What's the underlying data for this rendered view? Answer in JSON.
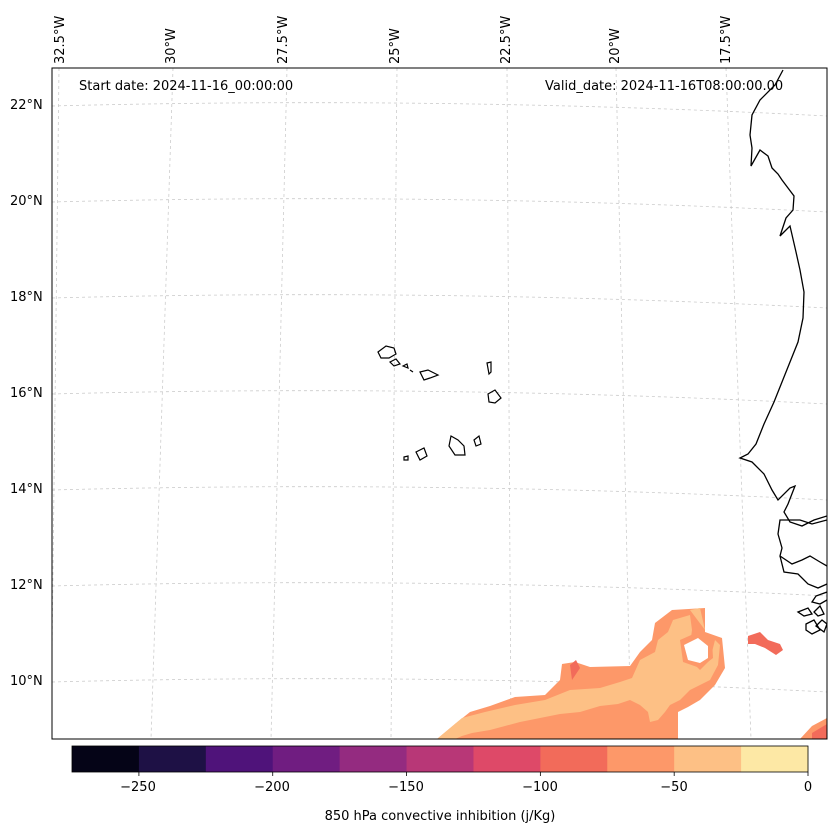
{
  "map": {
    "start_date": "Start date: 2024-11-16_00:00:00",
    "valid_date": "Valid_date: 2024-11-16T08:00:00.00",
    "longitude_labels": [
      "32.5°W",
      "30°W",
      "27.5°W",
      "25°W",
      "22.5°W",
      "20°W",
      "17.5°W"
    ],
    "latitude_labels": [
      "22°N",
      "20°N",
      "18°N",
      "16°N",
      "14°N",
      "12°N",
      "10°N"
    ],
    "region": "Cape Verde islands and West African coast",
    "field_colors": {
      "light": "#fdc085",
      "mid": "#fd9869",
      "dark": "#f26b5a"
    }
  },
  "colorbar": {
    "title": "850 hPa convective inhibition (j/Kg)",
    "tick_labels": [
      "−250",
      "−200",
      "−150",
      "−100",
      "−50",
      "0"
    ],
    "bins": [
      {
        "from": -275,
        "to": -250,
        "color": "#050417"
      },
      {
        "from": -250,
        "to": -225,
        "color": "#1e1145"
      },
      {
        "from": -225,
        "to": -200,
        "color": "#4f137a"
      },
      {
        "from": -200,
        "to": -175,
        "color": "#701d81"
      },
      {
        "from": -175,
        "to": -150,
        "color": "#942b80"
      },
      {
        "from": -150,
        "to": -125,
        "color": "#b83777"
      },
      {
        "from": -125,
        "to": -100,
        "color": "#de4968"
      },
      {
        "from": -100,
        "to": -75,
        "color": "#f26b5a"
      },
      {
        "from": -75,
        "to": -50,
        "color": "#fd9869"
      },
      {
        "from": -50,
        "to": -25,
        "color": "#fdc085"
      },
      {
        "from": -25,
        "to": 0,
        "color": "#fde8a5"
      }
    ],
    "range": [
      -275,
      0
    ]
  }
}
